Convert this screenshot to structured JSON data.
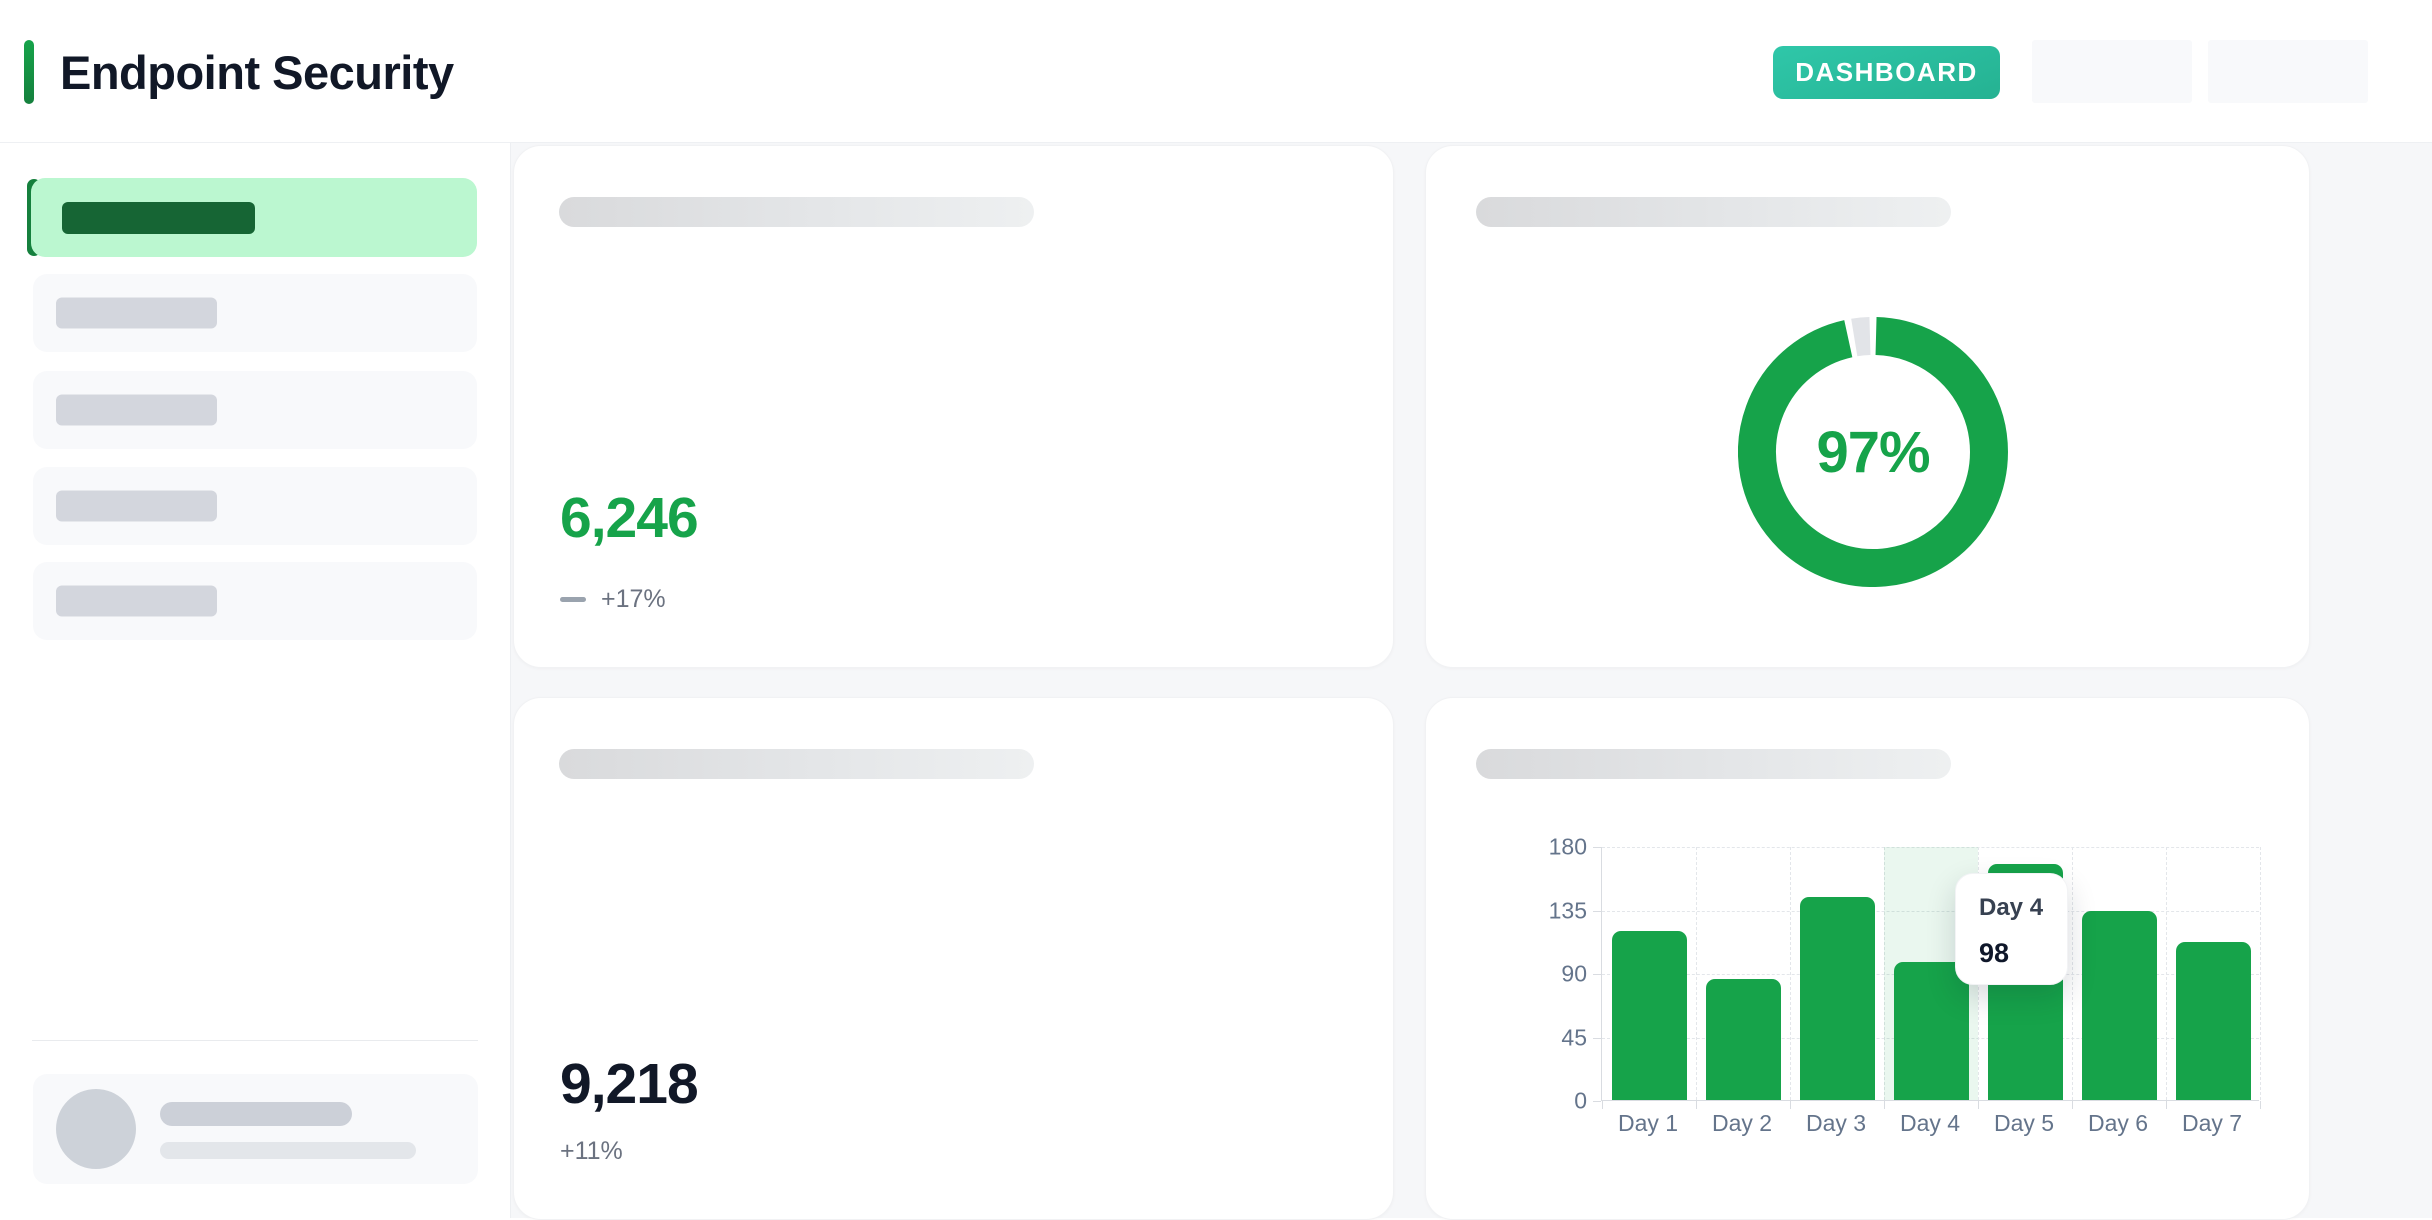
{
  "header": {
    "title": "Endpoint Security",
    "dashboard_button": "DASHBOARD"
  },
  "stat_cards": [
    {
      "value": "6,246",
      "change": "+17%",
      "color": "#16a34a"
    },
    {
      "value": "9,218",
      "change": "+11%",
      "color": "#111827"
    }
  ],
  "donut": {
    "label": "97%",
    "percent": 97,
    "remainder": 3,
    "color": "#16a34a",
    "remainder_color": "#e2e4e8"
  },
  "chart_data": {
    "type": "bar",
    "title": "",
    "categories": [
      "Day 1",
      "Day 2",
      "Day 3",
      "Day 4",
      "Day 5",
      "Day 6",
      "Day 7"
    ],
    "values": [
      120,
      86,
      144,
      98,
      167,
      134,
      112
    ],
    "ylim": [
      0,
      180
    ],
    "yticks": [
      0,
      45,
      90,
      135,
      180
    ],
    "bar_color": "#16a34a",
    "grid": true,
    "legend": false,
    "highlight_index": 3,
    "tooltip": {
      "label": "Day 4",
      "value": "98"
    }
  },
  "colors": {
    "accent_green": "#16a34a",
    "dark_green": "#166534",
    "active_item_bg": "#bbf7d0",
    "button_teal": "#2bbfa4",
    "main_background": "#f6f7f9",
    "muted_text": "#6b7280"
  }
}
